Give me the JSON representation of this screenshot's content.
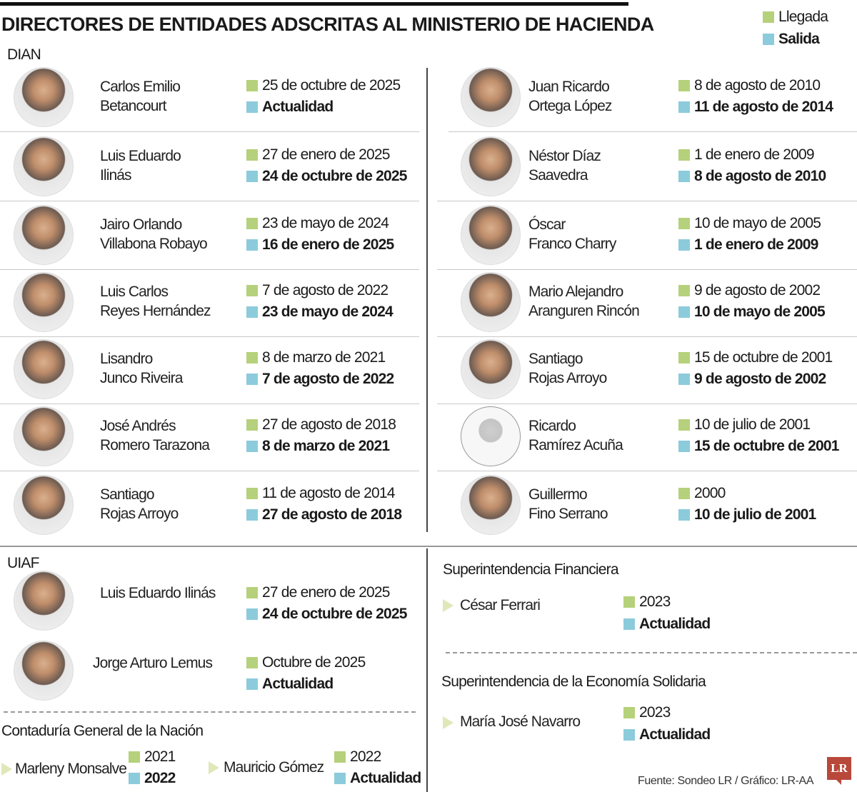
{
  "title": "DIRECTORES DE ENTIDADES ADSCRITAS AL MINISTERIO DE HACIENDA",
  "legend": {
    "arrival": "Llegada",
    "departure": "Salida"
  },
  "colors": {
    "arrival": "#b5d17b",
    "departure": "#8ccbdc",
    "logo": "#b8483a"
  },
  "dian": {
    "label": "DIAN",
    "left": [
      {
        "name1": "Carlos Emilio",
        "name2": "Betancourt",
        "start": "25 de octubre de 2025",
        "end": "Actualidad"
      },
      {
        "name1": "Luis Eduardo",
        "name2": "Ilinás",
        "start": "27 de enero de 2025",
        "end": "24 de octubre de 2025"
      },
      {
        "name1": "Jairo Orlando",
        "name2": "Villabona Robayo",
        "start": "23 de mayo de 2024",
        "end": "16 de enero de 2025"
      },
      {
        "name1": "Luis Carlos",
        "name2": "Reyes Hernández",
        "start": "7 de agosto de 2022",
        "end": "23 de mayo de 2024"
      },
      {
        "name1": "Lisandro",
        "name2": "Junco Riveira",
        "start": "8 de marzo de 2021",
        "end": "7 de agosto de 2022"
      },
      {
        "name1": "José Andrés",
        "name2": "Romero Tarazona",
        "start": "27 de agosto de 2018",
        "end": "8 de marzo de 2021"
      },
      {
        "name1": "Santiago",
        "name2": "Rojas Arroyo",
        "start": "11 de agosto de 2014",
        "end": "27 de agosto de 2018"
      }
    ],
    "right": [
      {
        "name1": "Juan Ricardo",
        "name2": "Ortega López",
        "start": "8 de agosto de 2010",
        "end": "11 de agosto de 2014"
      },
      {
        "name1": "Néstor Díaz",
        "name2": "Saavedra",
        "start": "1 de enero de 2009",
        "end": "8 de agosto de 2010"
      },
      {
        "name1": "Óscar",
        "name2": "Franco Charry",
        "start": "10 de mayo de 2005",
        "end": "1 de enero de 2009"
      },
      {
        "name1": "Mario Alejandro",
        "name2": "Aranguren Rincón",
        "start": "9 de agosto de 2002",
        "end": "10 de mayo de 2005"
      },
      {
        "name1": "Santiago",
        "name2": "Rojas Arroyo",
        "start": "15 de octubre de 2001",
        "end": "9 de agosto de 2002"
      },
      {
        "name1": "Ricardo",
        "name2": "Ramírez Acuña",
        "start": "10 de julio de 2001",
        "end": "15 de octubre de 2001",
        "placeholder": true
      },
      {
        "name1": "Guillermo",
        "name2": "Fino Serrano",
        "start": "2000",
        "end": "10 de julio de 2001"
      }
    ]
  },
  "uiaf": {
    "label": "UIAF",
    "items": [
      {
        "name": "Luis Eduardo  Ilinás",
        "start": "27 de enero de 2025",
        "end": "24 de octubre de 2025"
      },
      {
        "name": "Jorge Arturo Lemus",
        "start": "Octubre de 2025",
        "end": "Actualidad"
      }
    ]
  },
  "contaduria": {
    "label": "Contaduría General de la Nación",
    "items": [
      {
        "name": "Marleny Monsalve",
        "start": "2021",
        "end": "2022"
      },
      {
        "name": "Mauricio Gómez",
        "start": "2022",
        "end": "Actualidad"
      }
    ]
  },
  "superfinanciera": {
    "label": "Superintendencia Financiera",
    "name": "César Ferrari",
    "start": "2023",
    "end": "Actualidad"
  },
  "supersolidaria": {
    "label": "Superintendencia de la Economía Solidaria",
    "name": "María José Navarro",
    "start": "2023",
    "end": "Actualidad"
  },
  "footer": {
    "source": "Fuente: Sondeo LR / Gráfico: LR-AA",
    "logo": "LR"
  }
}
